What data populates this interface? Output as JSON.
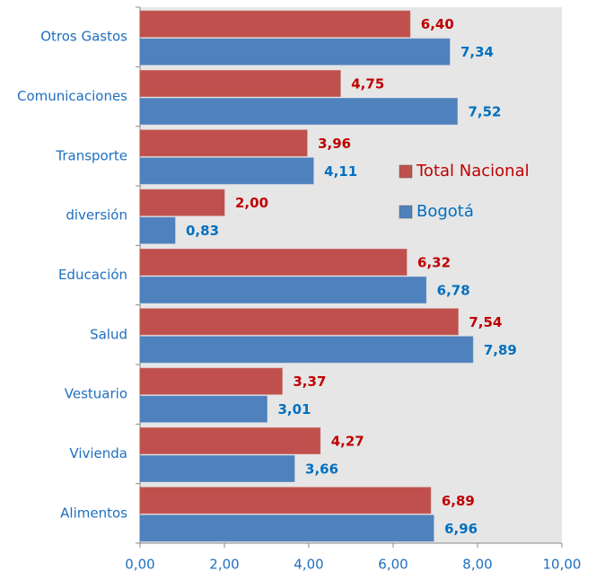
{
  "chart_data": {
    "type": "barh",
    "categories": [
      "Otros Gastos",
      "Comunicaciones",
      "Transporte",
      "diversión",
      "Educación",
      "Salud",
      "Vestuario",
      "Vivienda",
      "Alimentos"
    ],
    "series": [
      {
        "name": "Total Nacional",
        "color": "#c0504d",
        "label_color": "#c00000",
        "values": [
          6.4,
          4.75,
          3.96,
          2.0,
          6.32,
          7.54,
          3.37,
          4.27,
          6.89
        ],
        "value_labels": [
          "6,40",
          "4,75",
          "3,96",
          "2,00",
          "6,32",
          "7,54",
          "3,37",
          "4,27",
          "6,89"
        ]
      },
      {
        "name": "Bogotá",
        "color": "#4f81bd",
        "label_color": "#0070c0",
        "values": [
          7.34,
          7.52,
          4.11,
          0.83,
          6.78,
          7.89,
          3.01,
          3.66,
          6.96
        ],
        "value_labels": [
          "7,34",
          "7,52",
          "4,11",
          "0,83",
          "6,78",
          "7,89",
          "3,01",
          "3,66",
          "6,96"
        ]
      }
    ],
    "xlim": [
      0,
      10
    ],
    "xticks": [
      {
        "value": 0,
        "label": "0,00"
      },
      {
        "value": 2,
        "label": "2,00"
      },
      {
        "value": 4,
        "label": "4,00"
      },
      {
        "value": 6,
        "label": "6,00"
      },
      {
        "value": 8,
        "label": "8,00"
      },
      {
        "value": 10,
        "label": "10,00"
      }
    ],
    "grid": false,
    "legend": "right"
  }
}
